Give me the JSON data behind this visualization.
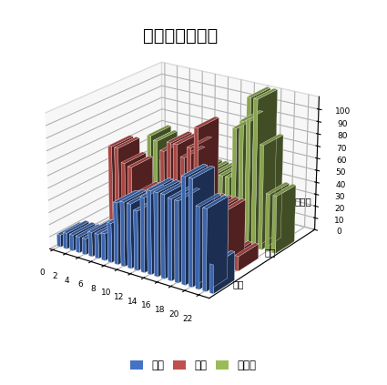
{
  "title": "各地の降水確率",
  "series_labels": [
    "東京",
    "大阪",
    "名古屋"
  ],
  "series_colors": [
    "#4472C4",
    "#C0504D",
    "#9BBB59"
  ],
  "tokyo": [
    10,
    13,
    13,
    13,
    13,
    20,
    20,
    22,
    32,
    50,
    52,
    52,
    48,
    60,
    67,
    67,
    67,
    65,
    65,
    85,
    85,
    65,
    65,
    23
  ],
  "osaka": [
    0,
    0,
    0,
    73,
    73,
    62,
    60,
    40,
    40,
    42,
    40,
    80,
    88,
    88,
    79,
    88,
    105,
    45,
    45,
    45,
    45,
    12,
    12,
    0
  ],
  "nagoya": [
    0,
    0,
    0,
    0,
    70,
    67,
    52,
    52,
    52,
    52,
    52,
    52,
    52,
    52,
    52,
    52,
    52,
    93,
    100,
    120,
    120,
    85,
    47,
    47
  ],
  "y_axis_ticks": [
    0,
    10,
    20,
    30,
    40,
    50,
    60,
    70,
    80,
    90,
    100
  ],
  "x_ticks": [
    0,
    2,
    4,
    6,
    8,
    10,
    12,
    14,
    16,
    18,
    20,
    22
  ],
  "background_color": "#FFFFFF",
  "axis_side_labels": [
    "名古屋",
    "大阪",
    "東京"
  ],
  "legend_labels": [
    "東京",
    "大阪",
    "名古屋"
  ]
}
